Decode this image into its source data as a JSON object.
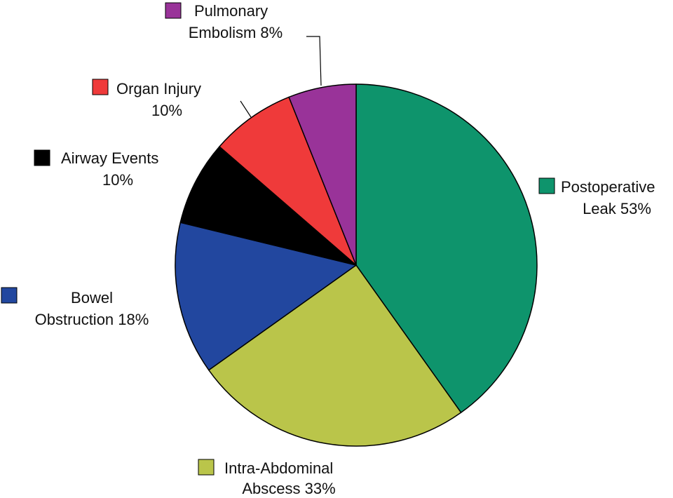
{
  "chart_data": {
    "type": "pie",
    "slices": [
      {
        "label_lines": [
          "Postoperative",
          "Leak 53%"
        ],
        "value": 53,
        "color": "#0e946c"
      },
      {
        "label_lines": [
          "Intra-Abdominal",
          "Abscess 33%"
        ],
        "value": 33,
        "color": "#bac54a"
      },
      {
        "label_lines": [
          "Bowel",
          "Obstruction 18%"
        ],
        "value": 18,
        "color": "#22479f"
      },
      {
        "label_lines": [
          "Airway Events",
          "10%"
        ],
        "value": 10,
        "color": "#000000"
      },
      {
        "label_lines": [
          "Organ Injury",
          "10%"
        ],
        "value": 10,
        "color": "#ef3a3a"
      },
      {
        "label_lines": [
          "Pulmonary",
          "Embolism 8%"
        ],
        "value": 8,
        "color": "#993399"
      }
    ],
    "start": "top",
    "direction": "clockwise",
    "legend": "labels beside slices with color squares"
  }
}
